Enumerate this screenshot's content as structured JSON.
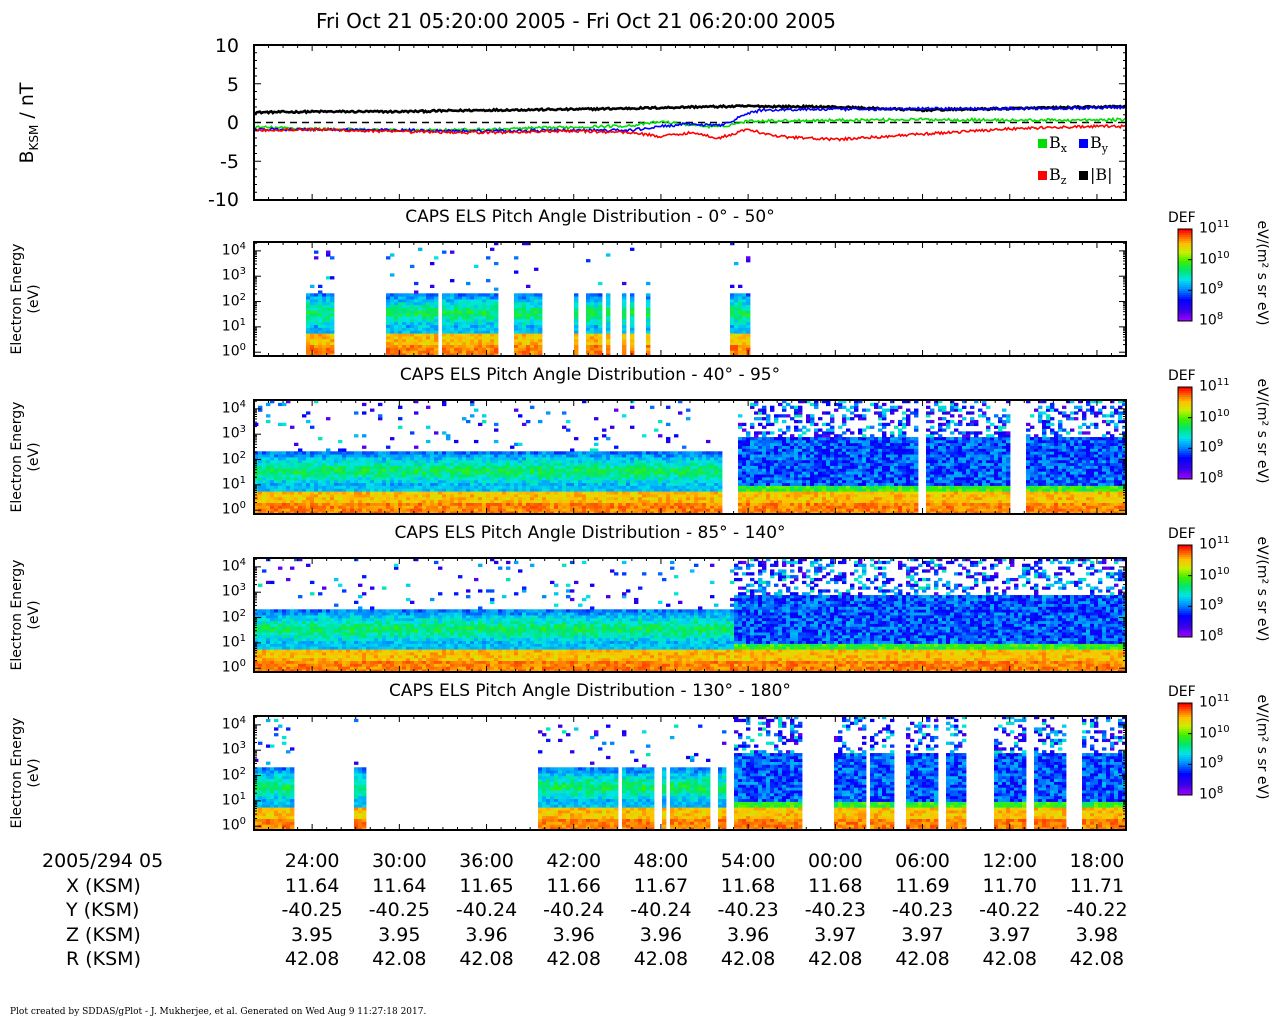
{
  "title": "Fri Oct 21 05:20:00 2005 - Fri Oct 21 06:20:00 2005",
  "footer": "Plot created by SDDAS/gPlot - J. Mukherjee, et al.  Generated on Wed Aug 9 11:27:18 2017.",
  "colors": {
    "bx": "#00dd00",
    "by": "#0000ff",
    "bz": "#ff0000",
    "bt": "#000000"
  },
  "panels": {
    "mag": {
      "ylabel_main": "B",
      "ylabel_sub": "KSM",
      "ylabel_unit": " / nT",
      "yticks": [
        "10",
        "5",
        "0",
        "-5",
        "-10"
      ],
      "legend": {
        "bx_main": "B",
        "bx_sub": "x",
        "by_main": "B",
        "by_sub": "y",
        "bz_main": "B",
        "bz_sub": "z",
        "bt": "|B|"
      }
    },
    "p1": {
      "title": "CAPS ELS Pitch Angle Distribution - 0° - 50°"
    },
    "p2": {
      "title": "CAPS ELS Pitch Angle Distribution - 40° - 95°"
    },
    "p3": {
      "title": "CAPS ELS Pitch Angle Distribution - 85° - 140°"
    },
    "p4": {
      "title": "CAPS ELS Pitch Angle Distribution - 130° - 180°"
    },
    "spec_ylabel_1": "Electron Energy",
    "spec_ylabel_2": "(eV)",
    "spec_yticks": [
      {
        "base": "10",
        "exp": "4"
      },
      {
        "base": "10",
        "exp": "3"
      },
      {
        "base": "10",
        "exp": "2"
      },
      {
        "base": "10",
        "exp": "1"
      },
      {
        "base": "10",
        "exp": "0"
      }
    ],
    "colorbar": {
      "label": "DEF",
      "unit": "eV/(m² s sr eV)",
      "ticks": [
        {
          "base": "10",
          "exp": "11"
        },
        {
          "base": "10",
          "exp": "10"
        },
        {
          "base": "10",
          "exp": "9"
        },
        {
          "base": "10",
          "exp": "8"
        }
      ]
    }
  },
  "xaxis": {
    "row_labels": [
      "2005/294 05",
      "X (KSM)",
      "Y (KSM)",
      "Z (KSM)",
      "R (KSM)"
    ],
    "times": [
      "24:00",
      "30:00",
      "36:00",
      "42:00",
      "48:00",
      "54:00",
      "00:00",
      "06:00",
      "12:00",
      "18:00"
    ],
    "x": [
      "11.64",
      "11.64",
      "11.65",
      "11.66",
      "11.67",
      "11.68",
      "11.68",
      "11.69",
      "11.70",
      "11.71"
    ],
    "y": [
      "-40.25",
      "-40.25",
      "-40.24",
      "-40.24",
      "-40.24",
      "-40.23",
      "-40.23",
      "-40.23",
      "-40.22",
      "-40.22"
    ],
    "z": [
      "3.95",
      "3.95",
      "3.96",
      "3.96",
      "3.96",
      "3.96",
      "3.97",
      "3.97",
      "3.97",
      "3.98"
    ],
    "r": [
      "42.08",
      "42.08",
      "42.08",
      "42.08",
      "42.08",
      "42.08",
      "42.08",
      "42.08",
      "42.08",
      "42.08"
    ]
  },
  "chart_data": [
    {
      "type": "line",
      "ylabel": "BKSM / nT",
      "xlim_minutes": [
        20,
        80
      ],
      "ylim": [
        -10,
        10
      ],
      "zero_line": "dashed",
      "series": [
        {
          "name": "|B|",
          "color": "#000000",
          "x": [
            20,
            24,
            30,
            36,
            42,
            48,
            50,
            54,
            60,
            66,
            72,
            78,
            80
          ],
          "y": [
            1.3,
            1.4,
            1.4,
            1.6,
            1.7,
            1.9,
            2.0,
            2.1,
            2.0,
            1.6,
            1.8,
            2.0,
            2.1
          ]
        },
        {
          "name": "Bx",
          "color": "#00dd00",
          "x": [
            20,
            24,
            30,
            36,
            42,
            46,
            48,
            50,
            52,
            54,
            60,
            66,
            72,
            78,
            80
          ],
          "y": [
            -0.6,
            -0.8,
            -1.0,
            -0.9,
            -0.6,
            -0.4,
            0.1,
            -0.3,
            -0.6,
            0.2,
            0.3,
            0.4,
            0.3,
            0.3,
            0.4
          ]
        },
        {
          "name": "By",
          "color": "#0000ff",
          "x": [
            20,
            24,
            30,
            36,
            42,
            46,
            48,
            50,
            52,
            53,
            54,
            55,
            58,
            62,
            66,
            72,
            78,
            80
          ],
          "y": [
            -0.9,
            -0.9,
            -1.0,
            -1.1,
            -1.0,
            -1.0,
            -0.5,
            -0.2,
            -0.4,
            0.3,
            1.2,
            1.6,
            1.7,
            1.7,
            1.8,
            1.8,
            1.9,
            2.0
          ]
        },
        {
          "name": "Bz",
          "color": "#ff0000",
          "x": [
            20,
            24,
            30,
            36,
            42,
            46,
            48,
            50,
            52,
            54,
            56,
            60,
            66,
            72,
            78,
            80
          ],
          "y": [
            -1.0,
            -0.9,
            -1.2,
            -1.3,
            -1.1,
            -1.3,
            -1.8,
            -1.3,
            -2.0,
            -0.9,
            -1.8,
            -2.2,
            -1.5,
            -0.8,
            -0.5,
            -0.5
          ]
        }
      ]
    },
    {
      "type": "heatmap",
      "title": "CAPS ELS Pitch Angle Distribution - 0° - 50°",
      "ylabel": "Electron Energy (eV)",
      "ylim": [
        1,
        10000
      ],
      "yscale": "log",
      "colorbar": "DEF 1e8 - 1e11",
      "data_gaps": "mostly empty; data in short intervals near 24-26, 29-37, 42-44, 46-50, 53-54 min"
    },
    {
      "type": "heatmap",
      "title": "CAPS ELS Pitch Angle Distribution - 40° - 95°",
      "ylabel": "Electron Energy (eV)",
      "ylim": [
        1,
        10000
      ],
      "yscale": "log",
      "colorbar": "DEF 1e8 - 1e11"
    },
    {
      "type": "heatmap",
      "title": "CAPS ELS Pitch Angle Distribution - 85° - 140°",
      "ylabel": "Electron Energy (eV)",
      "ylim": [
        1,
        10000
      ],
      "yscale": "log",
      "colorbar": "DEF 1e8 - 1e11"
    },
    {
      "type": "heatmap",
      "title": "CAPS ELS Pitch Angle Distribution - 130° - 180°",
      "ylabel": "Electron Energy (eV)",
      "ylim": [
        1,
        10000
      ],
      "yscale": "log",
      "colorbar": "DEF 1e8 - 1e11"
    }
  ]
}
